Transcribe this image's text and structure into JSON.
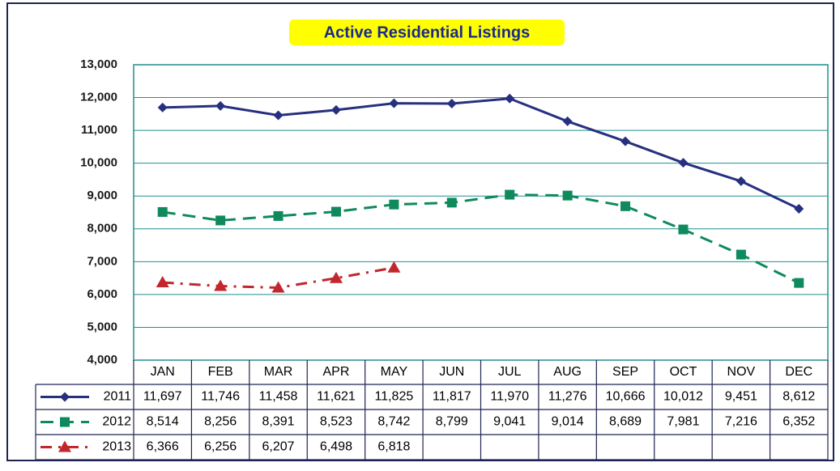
{
  "chart_data": {
    "type": "line",
    "title": "Active Residential Listings",
    "categories": [
      "JAN",
      "FEB",
      "MAR",
      "APR",
      "MAY",
      "JUN",
      "JUL",
      "AUG",
      "SEP",
      "OCT",
      "NOV",
      "DEC"
    ],
    "series": [
      {
        "name": "2011",
        "color": "#26307f",
        "marker": "diamond",
        "line_style": "solid",
        "values": [
          11697,
          11746,
          11458,
          11621,
          11825,
          11817,
          11970,
          11276,
          10666,
          10012,
          9451,
          8612
        ],
        "value_labels": [
          "11,697",
          "11,746",
          "11,458",
          "11,621",
          "11,825",
          "11,817",
          "11,970",
          "11,276",
          "10,666",
          "10,012",
          "9,451",
          "8,612"
        ]
      },
      {
        "name": "2012",
        "color": "#0e8a5c",
        "marker": "square",
        "line_style": "dash",
        "values": [
          8514,
          8256,
          8391,
          8523,
          8742,
          8799,
          9041,
          9014,
          8689,
          7981,
          7216,
          6352
        ],
        "value_labels": [
          "8,514",
          "8,256",
          "8,391",
          "8,523",
          "8,742",
          "8,799",
          "9,041",
          "9,014",
          "8,689",
          "7,981",
          "7,216",
          "6,352"
        ]
      },
      {
        "name": "2013",
        "color": "#c1272d",
        "marker": "triangle",
        "line_style": "dashdot",
        "values": [
          6366,
          6256,
          6207,
          6498,
          6818,
          null,
          null,
          null,
          null,
          null,
          null,
          null
        ],
        "value_labels": [
          "6,366",
          "6,256",
          "6,207",
          "6,498",
          "6,818",
          null,
          null,
          null,
          null,
          null,
          null,
          null
        ]
      }
    ],
    "ylim": [
      4000,
      13000
    ],
    "yticks": [
      {
        "value": 4000,
        "label": "4,000"
      },
      {
        "value": 5000,
        "label": "5,000"
      },
      {
        "value": 6000,
        "label": "6,000"
      },
      {
        "value": 7000,
        "label": "7,000"
      },
      {
        "value": 8000,
        "label": "8,000"
      },
      {
        "value": 9000,
        "label": "9,000"
      },
      {
        "value": 10000,
        "label": "10,000"
      },
      {
        "value": 11000,
        "label": "11,000"
      },
      {
        "value": 12000,
        "label": "12,000"
      },
      {
        "value": 13000,
        "label": "13,000"
      }
    ],
    "grid": true
  }
}
